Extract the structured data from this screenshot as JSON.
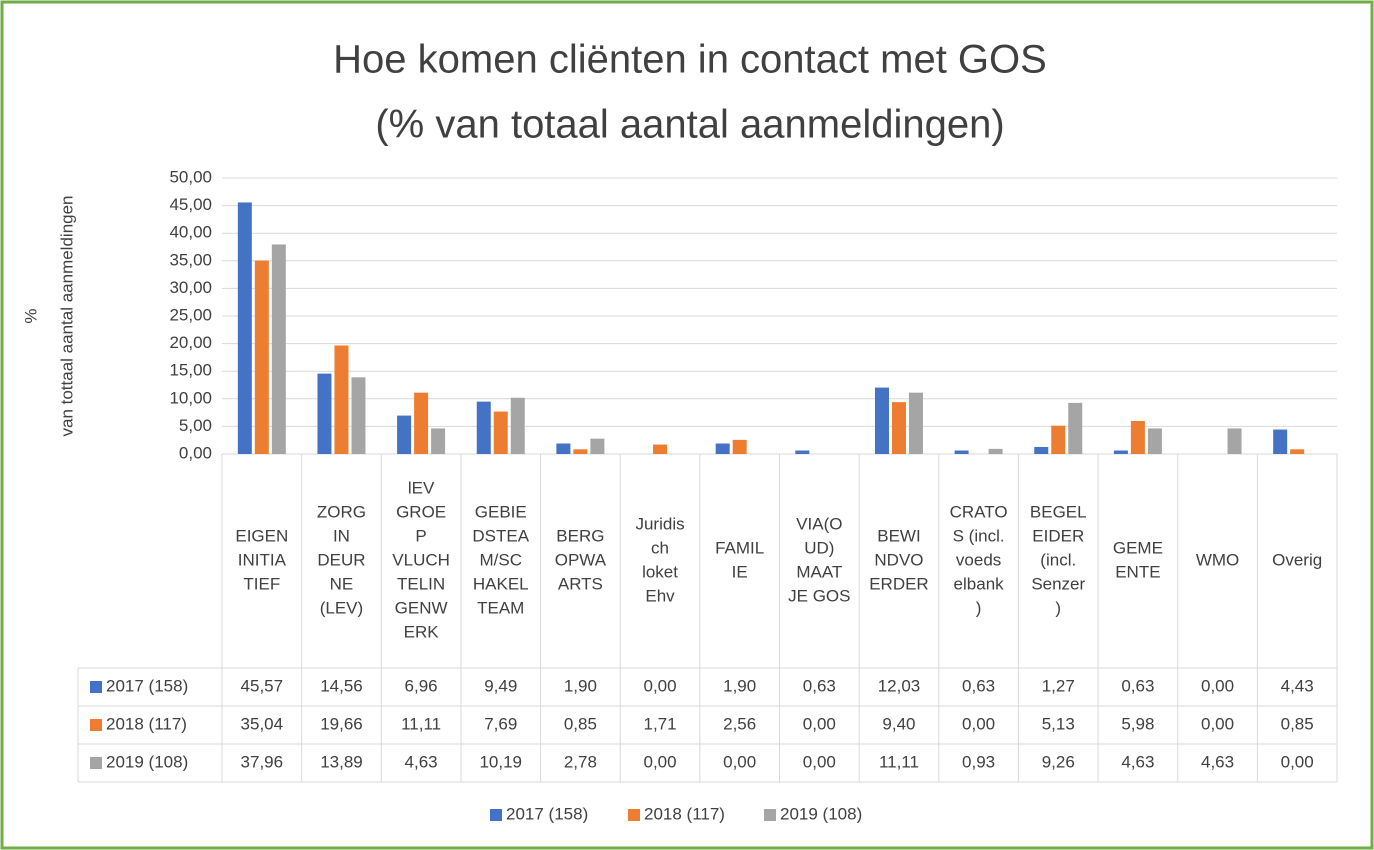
{
  "chart_data": {
    "type": "bar",
    "title": [
      "Hoe komen cliënten in contact met GOS",
      "(% van totaal aantal aanmeldingen)"
    ],
    "y_label": [
      "%",
      "van tottaal aantal aanmeldingen"
    ],
    "categories": [
      [
        "EIGEN",
        "INITIA",
        "TIEF"
      ],
      [
        "ZORG",
        "IN",
        "DEUR",
        "NE",
        "(LEV)"
      ],
      [
        "lEV",
        "GROE",
        "P",
        "VLUCH",
        "TELIN",
        "GENW",
        "ERK"
      ],
      [
        "GEBIE",
        "DSTEA",
        "M/SC",
        "HAKEL",
        "TEAM"
      ],
      [
        "BERG",
        "OPWA",
        "ARTS"
      ],
      [
        "Juridis",
        "ch",
        "loket",
        "Ehv"
      ],
      [
        "FAMIL",
        "IE"
      ],
      [
        "VIA(O",
        "UD)",
        "MAAT",
        "JE GOS"
      ],
      [
        "BEWI",
        "NDVO",
        "ERDER"
      ],
      [
        "CRATO",
        "S (incl.",
        "voeds",
        "elbank",
        ")"
      ],
      [
        "BEGEL",
        "EIDER",
        "(incl.",
        "Senzer",
        ")"
      ],
      [
        "GEME",
        "ENTE"
      ],
      [
        "WMO"
      ],
      [
        "Overig"
      ]
    ],
    "series": [
      {
        "name": "2017 (158)",
        "color": "#4472c4",
        "values": [
          45.57,
          14.56,
          6.96,
          9.49,
          1.9,
          0.0,
          1.9,
          0.63,
          12.03,
          0.63,
          1.27,
          0.63,
          0.0,
          4.43
        ],
        "value_labels": [
          "45,57",
          "14,56",
          "6,96",
          "9,49",
          "1,90",
          "0,00",
          "1,90",
          "0,63",
          "12,03",
          "0,63",
          "1,27",
          "0,63",
          "0,00",
          "4,43"
        ]
      },
      {
        "name": "2018 (117)",
        "color": "#ed7d31",
        "values": [
          35.04,
          19.66,
          11.11,
          7.69,
          0.85,
          1.71,
          2.56,
          0.0,
          9.4,
          0.0,
          5.13,
          5.98,
          0.0,
          0.85
        ],
        "value_labels": [
          "35,04",
          "19,66",
          "11,11",
          "7,69",
          "0,85",
          "1,71",
          "2,56",
          "0,00",
          "9,40",
          "0,00",
          "5,13",
          "5,98",
          "0,00",
          "0,85"
        ]
      },
      {
        "name": "2019 (108)",
        "color": "#a5a5a5",
        "values": [
          37.96,
          13.89,
          4.63,
          10.19,
          2.78,
          0.0,
          0.0,
          0.0,
          11.11,
          0.93,
          9.26,
          4.63,
          4.63,
          0.0
        ],
        "value_labels": [
          "37,96",
          "13,89",
          "4,63",
          "10,19",
          "2,78",
          "0,00",
          "0,00",
          "0,00",
          "11,11",
          "0,93",
          "9,26",
          "4,63",
          "4,63",
          "0,00"
        ]
      }
    ],
    "ylim": [
      0,
      50
    ],
    "yticks": [
      {
        "value": 0,
        "label": "0,00"
      },
      {
        "value": 5,
        "label": "5,00"
      },
      {
        "value": 10,
        "label": "10,00"
      },
      {
        "value": 15,
        "label": "15,00"
      },
      {
        "value": 20,
        "label": "20,00"
      },
      {
        "value": 25,
        "label": "25,00"
      },
      {
        "value": 30,
        "label": "30,00"
      },
      {
        "value": 35,
        "label": "35,00"
      },
      {
        "value": 40,
        "label": "40,00"
      },
      {
        "value": 45,
        "label": "45,00"
      },
      {
        "value": 50,
        "label": "50,00"
      }
    ],
    "grid": true,
    "legend": "bottom"
  }
}
